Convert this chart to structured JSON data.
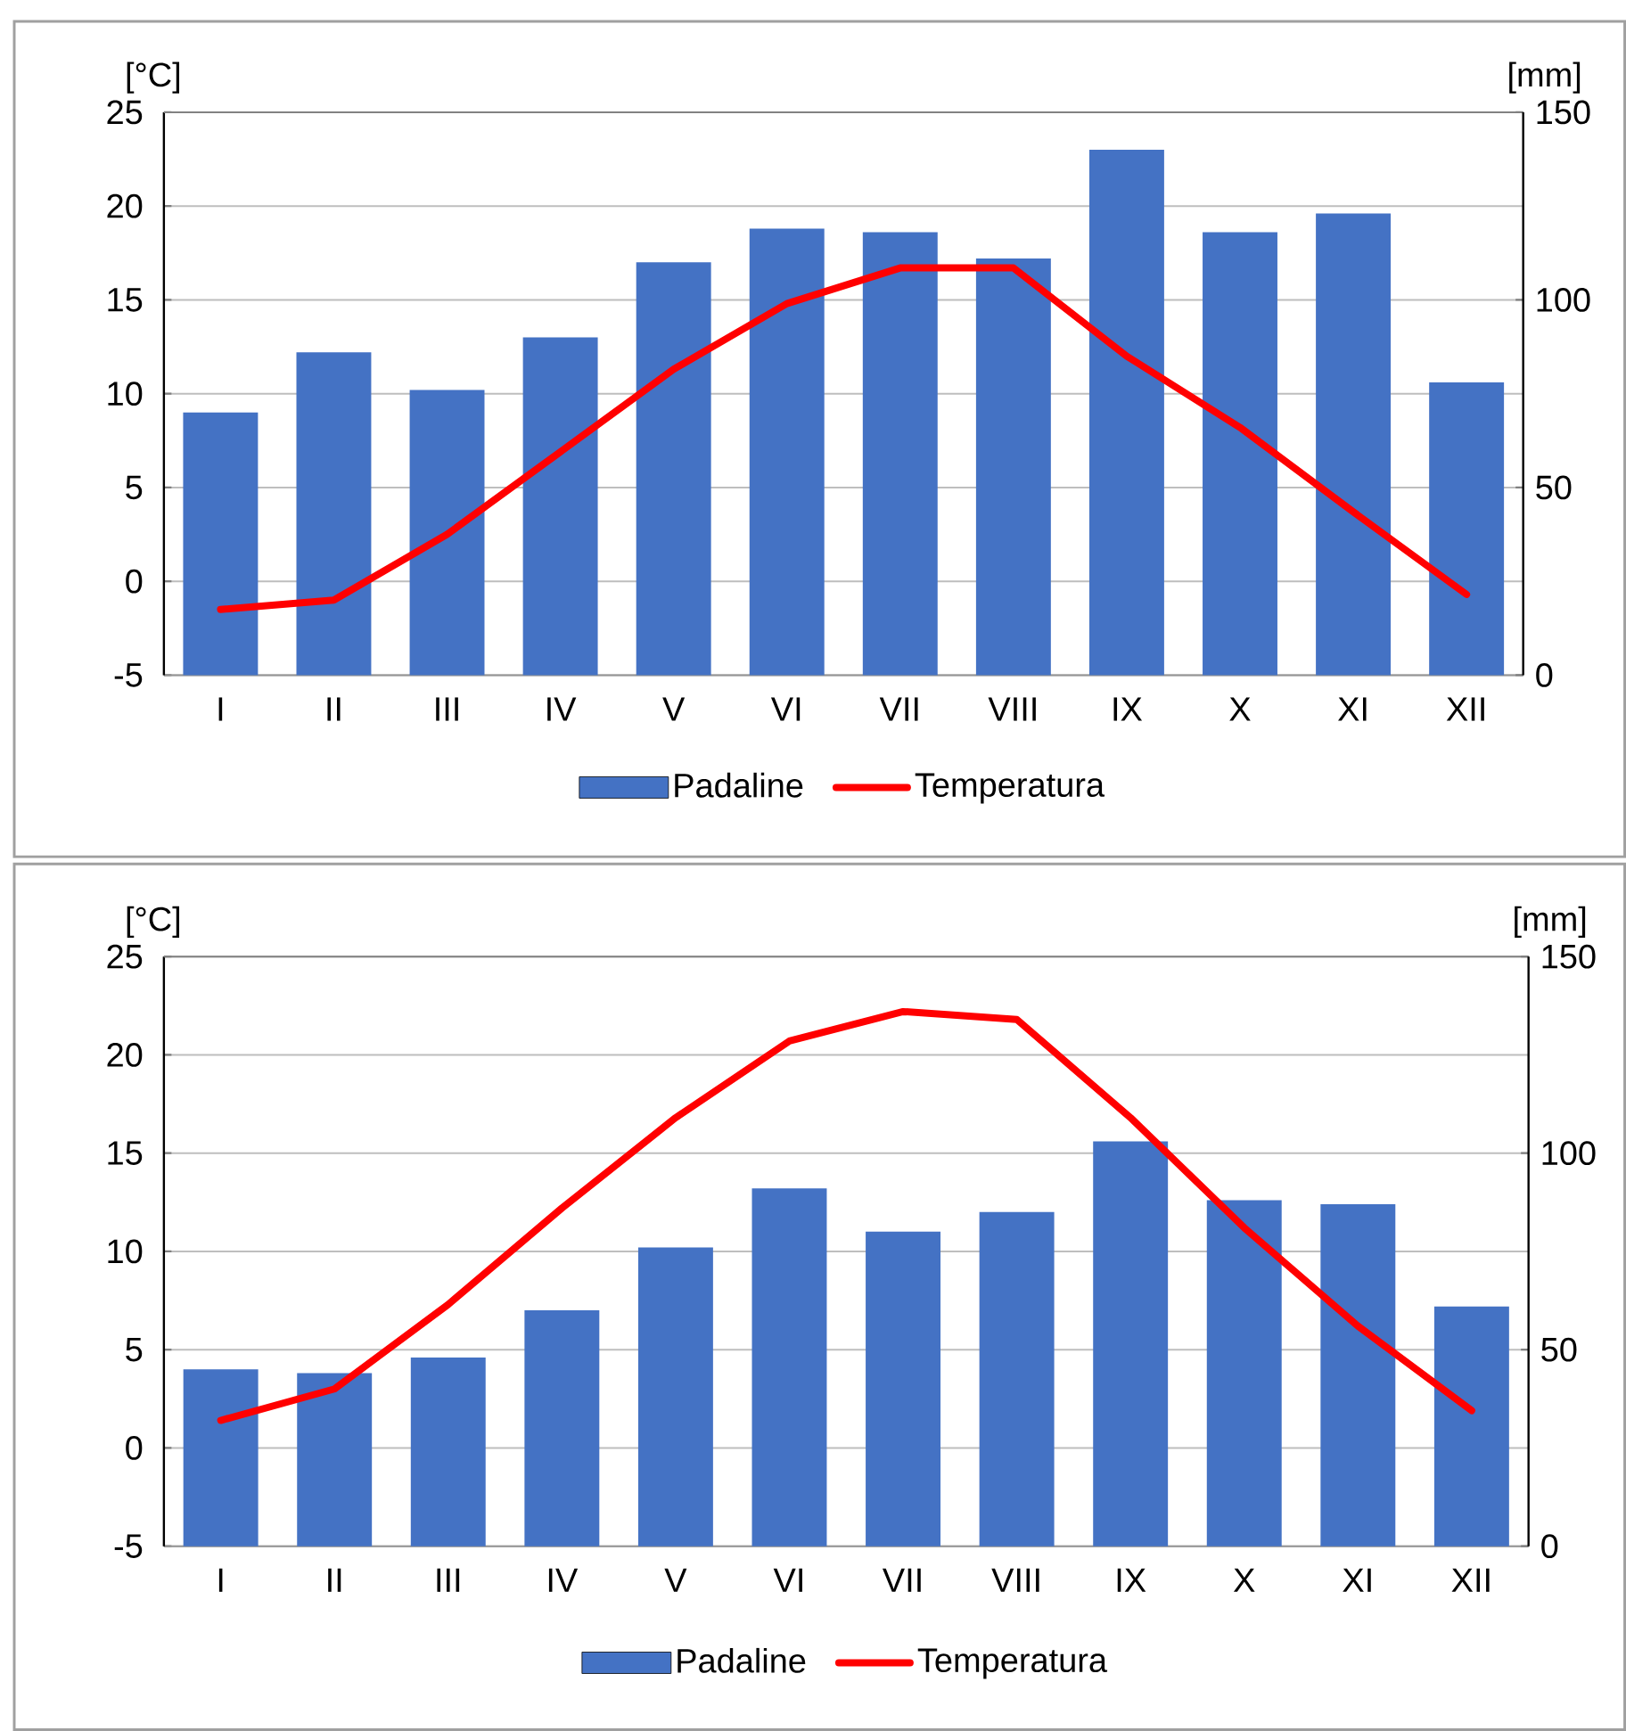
{
  "chart_data": [
    {
      "type": "bar",
      "categories": [
        "I",
        "II",
        "III",
        "IV",
        "V",
        "VI",
        "VII",
        "VIII",
        "IX",
        "X",
        "XI",
        "XII"
      ],
      "ylabel": "[°C]",
      "y2label": "[mm]",
      "ylim": [
        -5,
        25
      ],
      "yticks": [
        -5,
        0,
        5,
        10,
        15,
        20,
        25
      ],
      "y2lim": [
        0,
        150
      ],
      "y2ticks": [
        0,
        50,
        100,
        150
      ],
      "grid": "y",
      "legend": "bottom",
      "series": [
        {
          "name": "Padaline",
          "axis": "y2",
          "color": "#4472c4",
          "values": [
            70,
            86,
            76,
            90,
            110,
            119,
            118,
            111,
            140,
            118,
            123,
            78
          ]
        },
        {
          "name": "Temperatura",
          "type": "line",
          "axis": "y",
          "color": "#ff0000",
          "values": [
            -1.5,
            -1.0,
            2.5,
            6.9,
            11.3,
            14.8,
            16.7,
            16.7,
            12.0,
            8.2,
            3.7,
            -0.7
          ]
        }
      ]
    },
    {
      "type": "bar",
      "categories": [
        "I",
        "II",
        "III",
        "IV",
        "V",
        "VI",
        "VII",
        "VIII",
        "IX",
        "X",
        "XI",
        "XII"
      ],
      "ylabel": "[°C]",
      "y2label": "[mm]",
      "ylim": [
        -5,
        25
      ],
      "yticks": [
        -5,
        0,
        5,
        10,
        15,
        20,
        25
      ],
      "y2lim": [
        0,
        150
      ],
      "y2ticks": [
        0,
        50,
        100,
        150
      ],
      "grid": "y",
      "legend": "bottom",
      "series": [
        {
          "name": "Padaline",
          "axis": "y2",
          "color": "#4472c4",
          "values": [
            45,
            44,
            48,
            60,
            76,
            91,
            80,
            85,
            103,
            88,
            87,
            61
          ]
        },
        {
          "name": "Temperatura",
          "type": "line",
          "axis": "y",
          "color": "#ff0000",
          "values": [
            1.4,
            3.0,
            7.3,
            12.2,
            16.8,
            20.7,
            22.2,
            21.8,
            16.8,
            11.2,
            6.2,
            1.9
          ]
        }
      ]
    }
  ]
}
